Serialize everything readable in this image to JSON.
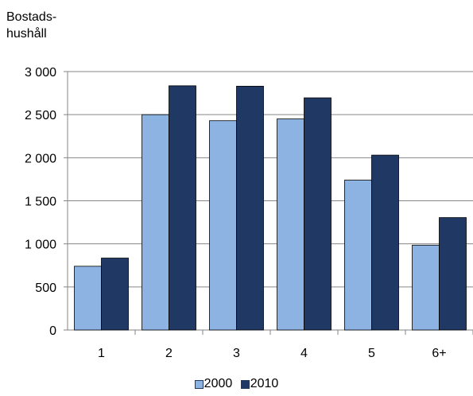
{
  "chart_data": {
    "type": "bar",
    "ylabel_lines": [
      "Bostads-",
      "hushåll"
    ],
    "xlabel": "",
    "categories": [
      "1",
      "2",
      "3",
      "4",
      "5",
      "6+"
    ],
    "series": [
      {
        "name": "2000",
        "color": "#8db3e2",
        "values": [
          740,
          2500,
          2430,
          2450,
          1740,
          985
        ]
      },
      {
        "name": "2010",
        "color": "#1f3864",
        "values": [
          835,
          2835,
          2830,
          2695,
          2030,
          1305
        ]
      }
    ],
    "ylim": [
      0,
      3000
    ],
    "yticks": [
      0,
      500,
      1000,
      1500,
      2000,
      2500,
      3000
    ],
    "ytick_labels": [
      "0",
      "500",
      "1 000",
      "1 500",
      "2 000",
      "2 500",
      "3 000"
    ],
    "grid": true,
    "legend_position": "bottom"
  }
}
